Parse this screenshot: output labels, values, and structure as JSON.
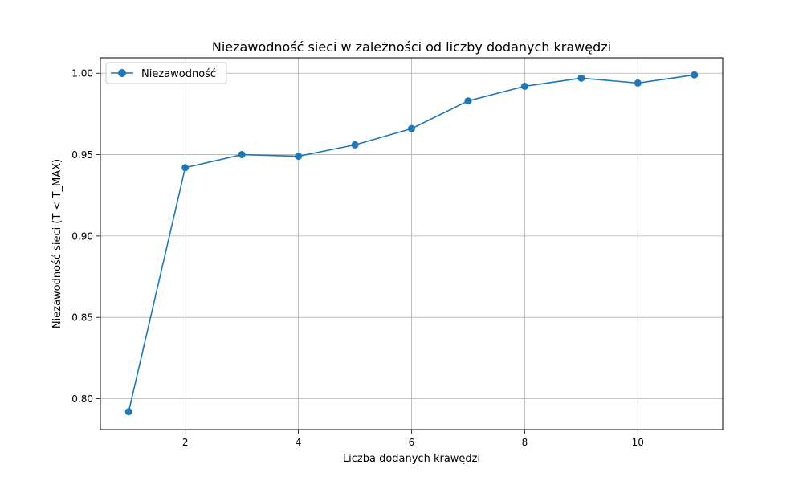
{
  "chart_data": {
    "type": "line",
    "title": "Niezawodność sieci w zależności od liczby dodanych krawędzi",
    "xlabel": "Liczba dodanych krawędzi",
    "ylabel": "Niezawodność sieci (T < T_MAX)",
    "xlim": [
      0.5,
      11.5
    ],
    "ylim": [
      0.781,
      1.0095
    ],
    "xticks": [
      2,
      4,
      6,
      8,
      10
    ],
    "yticks": [
      0.8,
      0.85,
      0.9,
      0.95,
      1.0
    ],
    "xtick_labels": [
      "2",
      "4",
      "6",
      "8",
      "10"
    ],
    "ytick_labels": [
      "0.80",
      "0.85",
      "0.90",
      "0.95",
      "1.00"
    ],
    "grid": true,
    "legend_position": "top-left",
    "series": [
      {
        "name": "Niezawodność",
        "color": "#1f77b4",
        "marker": "circle",
        "x": [
          1,
          2,
          3,
          4,
          5,
          6,
          7,
          8,
          9,
          10,
          11
        ],
        "y": [
          0.792,
          0.942,
          0.95,
          0.949,
          0.956,
          0.966,
          0.983,
          0.992,
          0.997,
          0.994,
          0.999
        ]
      }
    ]
  }
}
